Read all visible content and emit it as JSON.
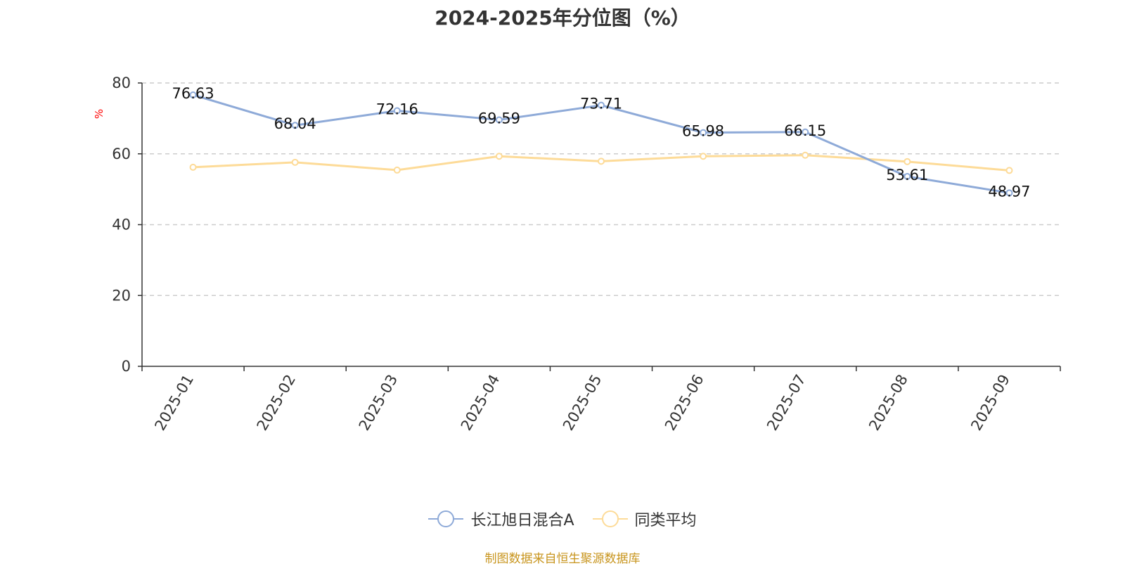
{
  "title": "2024-2025年分位图（%）",
  "source": "制图数据来自恒生聚源数据库",
  "chart_data": {
    "type": "line",
    "title": "2024-2025年分位图（%）",
    "ylabel": "%",
    "xlabel": "",
    "ylim": [
      0,
      80
    ],
    "yticks": [
      "0",
      "20",
      "40",
      "60",
      "80"
    ],
    "grid": true,
    "legend_position": "bottom-center",
    "categories": [
      "2025-01",
      "2025-02",
      "2025-03",
      "2025-04",
      "2025-05",
      "2025-06",
      "2025-07",
      "2025-08",
      "2025-09"
    ],
    "series": [
      {
        "name": "长江旭日混合A",
        "color": "#8eaad8",
        "values": [
          76.63,
          68.04,
          72.16,
          69.59,
          73.71,
          65.98,
          66.15,
          53.61,
          48.97
        ],
        "labels": [
          "76.63",
          "68.04",
          "72.16",
          "69.59",
          "73.71",
          "65.98",
          "66.15",
          "53.61",
          "48.97"
        ]
      },
      {
        "name": "同类平均",
        "color": "#fddb98",
        "values": [
          56.2,
          57.6,
          55.4,
          59.3,
          57.9,
          59.3,
          59.6,
          57.8,
          55.3
        ]
      }
    ]
  }
}
